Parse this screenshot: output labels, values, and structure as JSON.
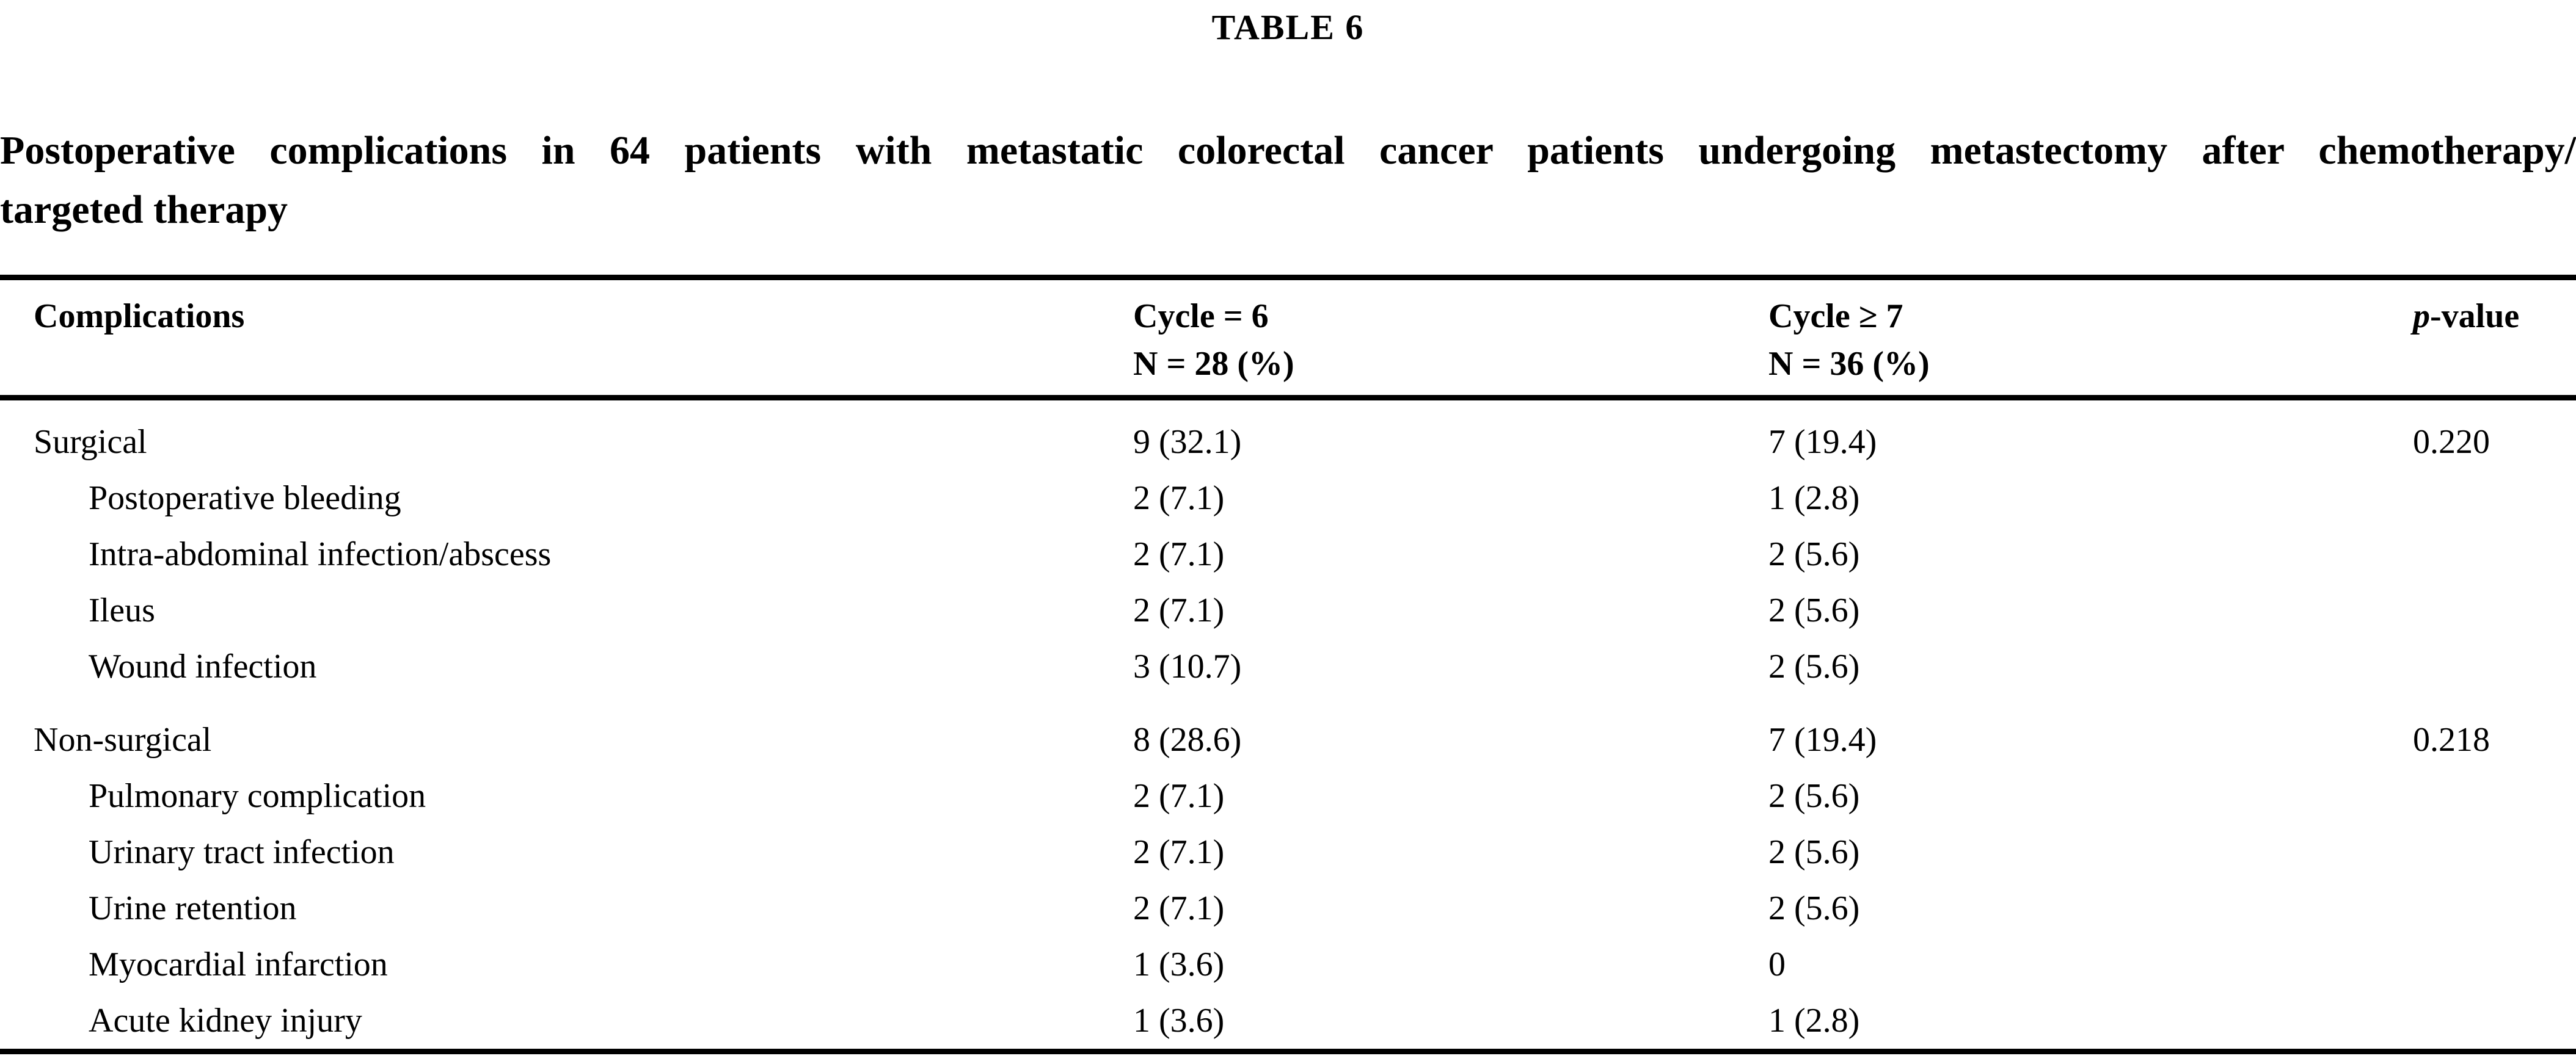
{
  "table_label": "TABLE 6",
  "title": {
    "line1": "Postoperative complications in 64 patients with metastatic colorectal cancer patients undergoing metastectomy after chemotherapy/",
    "line2": "targeted therapy"
  },
  "header": {
    "complications": "Complications",
    "cycle6_line1": "Cycle = 6",
    "cycle6_line2": "N = 28 (%)",
    "cycle7_line1": "Cycle ≥ 7",
    "cycle7_line2": "N = 36 (%)",
    "pvalue_italic": "p",
    "pvalue_rest": "-value"
  },
  "rows": [
    {
      "label": "Surgical",
      "cycle6": "9 (32.1)",
      "cycle7": "7 (19.4)",
      "pvalue": "0.220"
    },
    {
      "label": "Postoperative bleeding",
      "cycle6": "2 (7.1)",
      "cycle7": "1 (2.8)",
      "pvalue": ""
    },
    {
      "label": "Intra-abdominal infection/abscess",
      "cycle6": "2 (7.1)",
      "cycle7": "2 (5.6)",
      "pvalue": ""
    },
    {
      "label": "Ileus",
      "cycle6": "2 (7.1)",
      "cycle7": "2 (5.6)",
      "pvalue": ""
    },
    {
      "label": "Wound infection",
      "cycle6": "3 (10.7)",
      "cycle7": "2 (5.6)",
      "pvalue": ""
    },
    {
      "label": "Non-surgical",
      "cycle6": "8 (28.6)",
      "cycle7": "7 (19.4)",
      "pvalue": "0.218"
    },
    {
      "label": "Pulmonary complication",
      "cycle6": "2 (7.1)",
      "cycle7": "2 (5.6)",
      "pvalue": ""
    },
    {
      "label": "Urinary tract infection",
      "cycle6": "2 (7.1)",
      "cycle7": "2 (5.6)",
      "pvalue": ""
    },
    {
      "label": "Urine retention",
      "cycle6": "2 (7.1)",
      "cycle7": "2 (5.6)",
      "pvalue": ""
    },
    {
      "label": "Myocardial infarction",
      "cycle6": "1 (3.6)",
      "cycle7": "0",
      "pvalue": ""
    },
    {
      "label": "Acute kidney injury",
      "cycle6": "1 (3.6)",
      "cycle7": "1 (2.8)",
      "pvalue": ""
    }
  ]
}
